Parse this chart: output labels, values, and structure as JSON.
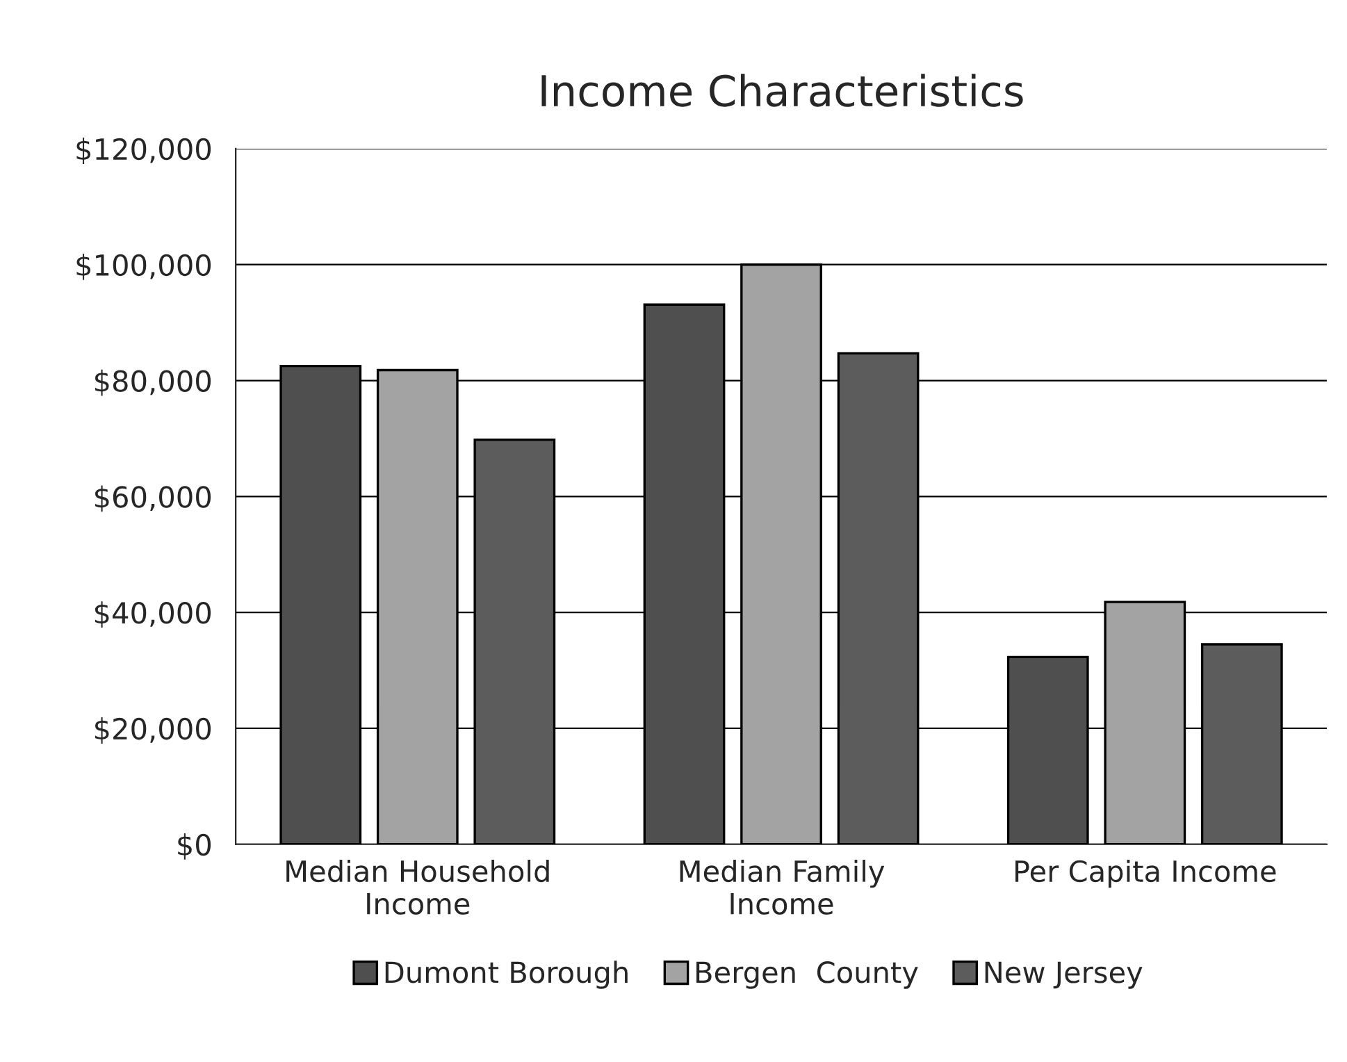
{
  "chart_data": {
    "type": "bar",
    "title": "Income Characteristics",
    "categories": [
      "Median Household\nIncome",
      "Median Family\nIncome",
      "Per Capita Income"
    ],
    "series": [
      {
        "name": "Dumont Borough",
        "color": "#4f4f4f",
        "values": [
          82500,
          93100,
          32300
        ]
      },
      {
        "name": "Bergen  County",
        "color": "#a3a3a3",
        "values": [
          81800,
          100000,
          41800
        ]
      },
      {
        "name": "New Jersey",
        "color": "#5c5c5c",
        "values": [
          69800,
          84700,
          34500
        ]
      }
    ],
    "ylim": [
      0,
      120000
    ],
    "yticks": [
      {
        "value": 0,
        "label": "$0"
      },
      {
        "value": 20000,
        "label": "$20,000"
      },
      {
        "value": 40000,
        "label": "$40,000"
      },
      {
        "value": 60000,
        "label": "$60,000"
      },
      {
        "value": 80000,
        "label": "$80,000"
      },
      {
        "value": 100000,
        "label": "$100,000"
      },
      {
        "value": 120000,
        "label": "$120,000"
      }
    ],
    "grid": "y",
    "legend": "bottom"
  }
}
